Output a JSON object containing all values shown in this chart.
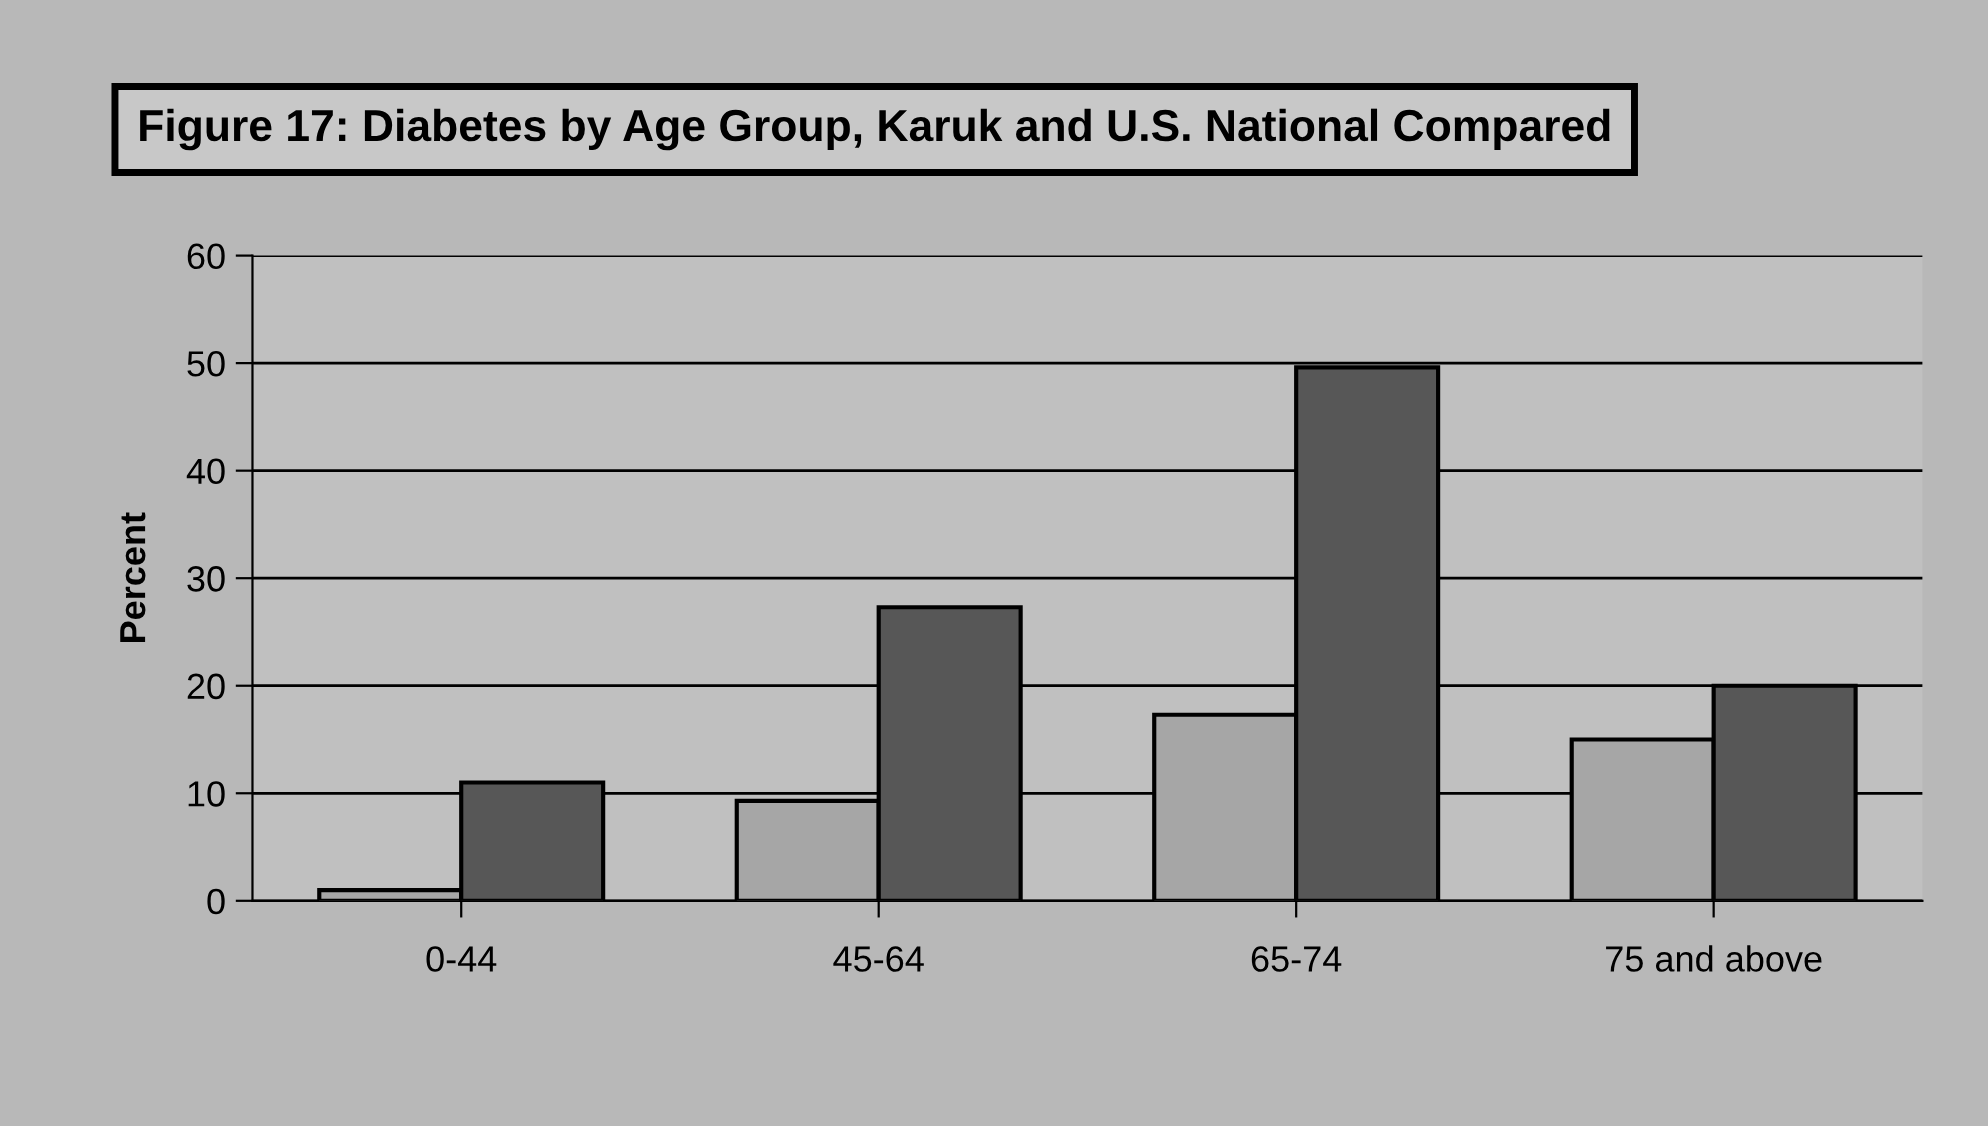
{
  "chart_data": {
    "type": "bar",
    "title": "Figure 17: Diabetes by Age Group, Karuk and U.S. National Compared",
    "ylabel": "Percent",
    "categories": [
      "0-44",
      "45-64",
      "65-74",
      "75 and above"
    ],
    "series": [
      {
        "color": "#a6a6a6",
        "values": [
          1,
          9.3,
          17.3,
          15
        ]
      },
      {
        "color": "#575757",
        "values": [
          11,
          27.3,
          49.6,
          20
        ]
      }
    ],
    "ylim": [
      0,
      60
    ],
    "yticks": [
      0,
      10,
      20,
      30,
      40,
      50,
      60
    ],
    "grid": "y",
    "legend": false
  }
}
